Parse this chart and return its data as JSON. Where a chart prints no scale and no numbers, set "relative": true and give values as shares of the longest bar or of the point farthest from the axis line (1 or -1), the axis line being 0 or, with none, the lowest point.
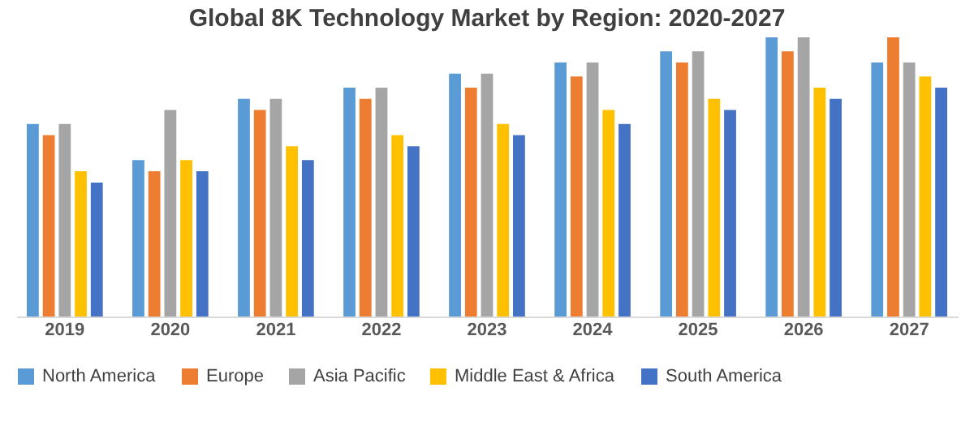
{
  "chart_data": {
    "type": "bar",
    "title": "Global 8K Technology Market by Region: 2020-2027",
    "relative": true,
    "grid": false,
    "legend": "bottom",
    "categories": [
      "2019",
      "2020",
      "2021",
      "2022",
      "2023",
      "2024",
      "2025",
      "2026",
      "2027"
    ],
    "series": [
      {
        "name": "North America",
        "color": "#5b9bd5",
        "values": [
          0.69,
          0.56,
          0.78,
          0.82,
          0.87,
          0.91,
          0.95,
          1,
          0.91
        ]
      },
      {
        "name": "Europe",
        "color": "#ed7d31",
        "values": [
          0.65,
          0.52,
          0.74,
          0.78,
          0.82,
          0.86,
          0.91,
          0.95,
          1
        ]
      },
      {
        "name": "Asia Pacific",
        "color": "#a5a5a5",
        "values": [
          0.69,
          0.74,
          0.78,
          0.82,
          0.87,
          0.91,
          0.95,
          1,
          0.91
        ]
      },
      {
        "name": "Middle East & Africa",
        "color": "#ffc000",
        "values": [
          0.52,
          0.56,
          0.61,
          0.65,
          0.69,
          0.74,
          0.78,
          0.82,
          0.86
        ]
      },
      {
        "name": "South America",
        "color": "#4472c4",
        "values": [
          0.48,
          0.52,
          0.56,
          0.61,
          0.65,
          0.69,
          0.74,
          0.78,
          0.82
        ]
      }
    ]
  }
}
